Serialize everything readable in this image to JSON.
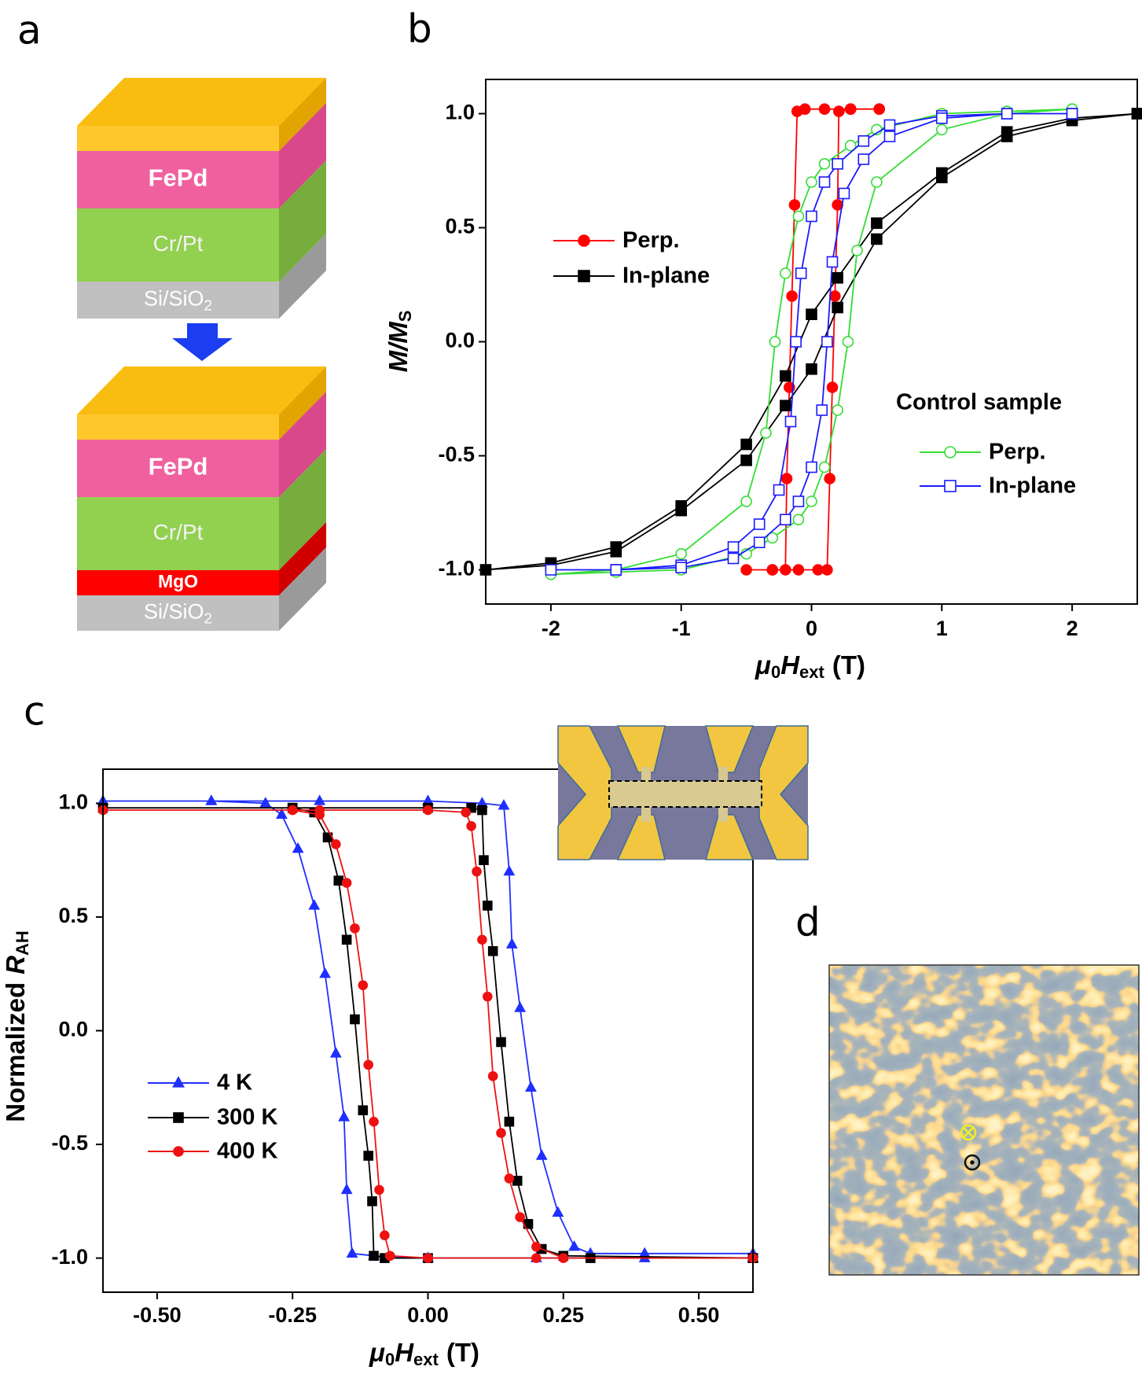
{
  "panels": [
    "a",
    "b",
    "c",
    "d"
  ],
  "diagram": {
    "top_stack": {
      "fepd": "FePd",
      "crpt": "Cr/Pt",
      "substrate": [
        "Si/SiO",
        "2"
      ]
    },
    "bottom_stack": {
      "fepd": "FePd",
      "crpt": "Cr/Pt",
      "mgo": "MgO",
      "substrate": [
        "Si/SiO",
        "2"
      ]
    }
  },
  "chart_data": [
    {
      "type": "line",
      "xlabel": [
        "μ",
        "0",
        "H",
        "ext",
        "(T)"
      ],
      "ylabel": [
        "M/M",
        "S"
      ],
      "xlim": [
        -2.5,
        2.5
      ],
      "ylim": [
        -1.15,
        1.15
      ],
      "xticks": [
        -2,
        -1,
        0,
        1,
        2
      ],
      "yticks": [
        {
          "value": 1.0,
          "label": "1.0"
        },
        {
          "value": 0.5,
          "label": "0.5"
        },
        {
          "value": 0.0,
          "label": "0.0"
        },
        {
          "value": -0.5,
          "label": "-0.5"
        },
        {
          "value": -1.0,
          "label": "-1.0"
        }
      ],
      "legend_title": "Control sample",
      "series": [
        {
          "name": "Perp.",
          "color": "#ff0000",
          "marker": "circle",
          "filled": true,
          "x": [
            0.52,
            0.3,
            0.1,
            -0.05,
            -0.11,
            -0.13,
            -0.15,
            -0.17,
            -0.19,
            -0.2,
            -0.3,
            -0.5,
            -0.3,
            -0.1,
            0.05,
            0.12,
            0.14,
            0.16,
            0.18,
            0.2,
            0.21,
            0.3,
            0.52
          ],
          "values": [
            1.02,
            1.02,
            1.02,
            1.02,
            1.01,
            0.6,
            0.2,
            -0.2,
            -0.6,
            -1.0,
            -1.0,
            -1.0,
            -1.0,
            -1.0,
            -1.0,
            -1.0,
            -0.6,
            -0.2,
            0.2,
            0.6,
            1.01,
            1.02,
            1.02
          ]
        },
        {
          "name": "In-plane",
          "color": "#000000",
          "marker": "square",
          "filled": true,
          "x": [
            2.5,
            2,
            1.5,
            1,
            0.5,
            0.2,
            0,
            -0.2,
            -0.5,
            -1,
            -1.5,
            -2,
            -2.5,
            -2,
            -1.5,
            -1,
            -0.5,
            -0.2,
            0,
            0.2,
            0.5,
            1,
            1.5,
            2,
            2.5
          ],
          "values": [
            1.0,
            0.98,
            0.92,
            0.74,
            0.52,
            0.28,
            0.12,
            -0.15,
            -0.45,
            -0.72,
            -0.9,
            -0.97,
            -1.0,
            -0.98,
            -0.92,
            -0.74,
            -0.52,
            -0.28,
            -0.12,
            0.15,
            0.45,
            0.72,
            0.9,
            0.97,
            1.0
          ]
        },
        {
          "name": "Perp.",
          "color": "#33dd33",
          "marker": "circle",
          "filled": false,
          "x": [
            2,
            1.5,
            1,
            0.5,
            0.3,
            0.1,
            0,
            -0.1,
            -0.2,
            -0.28,
            -0.35,
            -0.5,
            -1,
            -1.5,
            -2,
            -1.5,
            -1,
            -0.5,
            -0.3,
            -0.1,
            0,
            0.1,
            0.2,
            0.28,
            0.35,
            0.5,
            1,
            1.5,
            2
          ],
          "values": [
            1.02,
            1.01,
            1.0,
            0.93,
            0.86,
            0.78,
            0.7,
            0.55,
            0.3,
            0,
            -0.4,
            -0.7,
            -0.93,
            -1.0,
            -1.02,
            -1.01,
            -1.0,
            -0.93,
            -0.86,
            -0.78,
            -0.7,
            -0.55,
            -0.3,
            0,
            0.4,
            0.7,
            0.93,
            1.0,
            1.02
          ]
        },
        {
          "name": "In-plane",
          "color": "#1a1aff",
          "marker": "square",
          "filled": false,
          "x": [
            2,
            1.5,
            1,
            0.6,
            0.4,
            0.2,
            0.1,
            0,
            -0.08,
            -0.12,
            -0.16,
            -0.25,
            -0.4,
            -0.6,
            -1,
            -1.5,
            -2,
            -1.5,
            -1,
            -0.6,
            -0.4,
            -0.2,
            -0.1,
            0,
            0.08,
            0.12,
            0.16,
            0.25,
            0.4,
            0.6,
            1,
            1.5,
            2
          ],
          "values": [
            1.0,
            1.0,
            0.99,
            0.95,
            0.88,
            0.78,
            0.7,
            0.55,
            0.3,
            0,
            -0.35,
            -0.65,
            -0.8,
            -0.9,
            -0.98,
            -1.0,
            -1.0,
            -1.0,
            -0.99,
            -0.95,
            -0.88,
            -0.78,
            -0.7,
            -0.55,
            -0.3,
            0,
            0.35,
            0.65,
            0.8,
            0.9,
            0.98,
            1.0,
            1.0
          ]
        }
      ]
    },
    {
      "type": "line",
      "xlabel": [
        "μ",
        "0",
        "H",
        "ext",
        "(T)"
      ],
      "ylabel": [
        "Normalized",
        "R",
        "AH"
      ],
      "xlim": [
        -0.6,
        0.6
      ],
      "ylim": [
        -1.15,
        1.15
      ],
      "xticks": [
        {
          "value": -0.5,
          "label": "-0.50"
        },
        {
          "value": -0.25,
          "label": "-0.25"
        },
        {
          "value": 0,
          "label": "0.00"
        },
        {
          "value": 0.25,
          "label": "0.25"
        },
        {
          "value": 0.5,
          "label": "0.50"
        }
      ],
      "yticks": [
        {
          "value": 1.0,
          "label": "1.0"
        },
        {
          "value": 0.5,
          "label": "0.5"
        },
        {
          "value": 0.0,
          "label": "0.0"
        },
        {
          "value": -0.5,
          "label": "-0.5"
        },
        {
          "value": -1.0,
          "label": "-1.0"
        }
      ],
      "series": [
        {
          "name": "4 K",
          "color": "#1f2fff",
          "marker": "triangle",
          "filled": true,
          "x": [
            0.6,
            0.4,
            0.2,
            0,
            -0.1,
            -0.14,
            -0.15,
            -0.155,
            -0.17,
            -0.19,
            -0.21,
            -0.24,
            -0.27,
            -0.3,
            -0.4,
            -0.6,
            -0.4,
            -0.2,
            0,
            0.1,
            0.14,
            0.15,
            0.155,
            0.17,
            0.19,
            0.21,
            0.24,
            0.27,
            0.3,
            0.4,
            0.6
          ],
          "values": [
            -1.0,
            -1.0,
            -1.0,
            -1.0,
            -0.99,
            -0.98,
            -0.7,
            -0.38,
            -0.1,
            0.25,
            0.55,
            0.8,
            0.95,
            1.0,
            1.01,
            1.01,
            1.01,
            1.01,
            1.01,
            1.0,
            0.99,
            0.7,
            0.38,
            0.1,
            -0.25,
            -0.55,
            -0.8,
            -0.95,
            -0.98,
            -0.98,
            -0.98
          ]
        },
        {
          "name": "300 K",
          "color": "#000000",
          "marker": "square",
          "filled": true,
          "x": [
            0.6,
            0.3,
            0,
            -0.08,
            -0.1,
            -0.103,
            -0.11,
            -0.12,
            -0.135,
            -0.15,
            -0.165,
            -0.185,
            -0.21,
            -0.25,
            -0.6,
            -0.25,
            0,
            0.08,
            0.1,
            0.103,
            0.11,
            0.12,
            0.135,
            0.15,
            0.165,
            0.185,
            0.21,
            0.25,
            0.6
          ],
          "values": [
            -1.0,
            -1.0,
            -1.0,
            -1.0,
            -0.99,
            -0.75,
            -0.55,
            -0.35,
            0.05,
            0.4,
            0.66,
            0.85,
            0.96,
            0.98,
            0.98,
            0.98,
            0.98,
            0.98,
            0.97,
            0.75,
            0.55,
            0.35,
            -0.05,
            -0.4,
            -0.66,
            -0.85,
            -0.96,
            -0.99,
            -1.0
          ]
        },
        {
          "name": "400 K",
          "color": "#ee1111",
          "marker": "circle",
          "filled": true,
          "x": [
            0.6,
            0.2,
            0,
            -0.07,
            -0.08,
            -0.09,
            -0.1,
            -0.11,
            -0.12,
            -0.135,
            -0.15,
            -0.17,
            -0.2,
            -0.25,
            -0.6,
            -0.2,
            0,
            0.07,
            0.08,
            0.09,
            0.1,
            0.11,
            0.12,
            0.135,
            0.15,
            0.17,
            0.2,
            0.25,
            0.6
          ],
          "values": [
            -1.0,
            -1.0,
            -1.0,
            -0.99,
            -0.9,
            -0.7,
            -0.4,
            -0.15,
            0.2,
            0.45,
            0.65,
            0.82,
            0.95,
            0.97,
            0.97,
            0.97,
            0.97,
            0.96,
            0.9,
            0.7,
            0.4,
            0.15,
            -0.2,
            -0.45,
            -0.65,
            -0.82,
            -0.95,
            -1.0,
            -1.0
          ]
        }
      ]
    }
  ]
}
